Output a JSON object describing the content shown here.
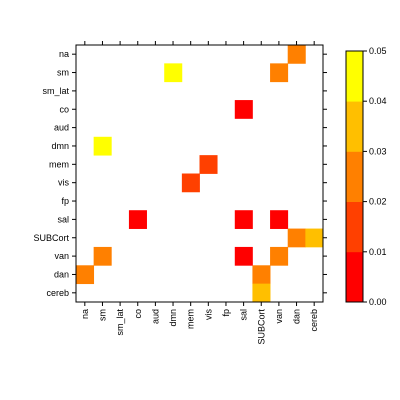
{
  "chart_data": {
    "type": "heatmap",
    "x_labels": [
      "na",
      "sm",
      "sm_lat",
      "co",
      "aud",
      "dmn",
      "mem",
      "vis",
      "fp",
      "sal",
      "SUBCort",
      "van",
      "dan",
      "cereb"
    ],
    "y_labels": [
      "na",
      "sm",
      "sm_lat",
      "co",
      "aud",
      "dmn",
      "mem",
      "vis",
      "fp",
      "sal",
      "SUBCort",
      "van",
      "dan",
      "cereb"
    ],
    "cells": [
      {
        "x": "dan",
        "y": "na",
        "value": 0.025
      },
      {
        "x": "dmn",
        "y": "sm",
        "value": 0.045
      },
      {
        "x": "van",
        "y": "sm",
        "value": 0.025
      },
      {
        "x": "sal",
        "y": "co",
        "value": 0.005
      },
      {
        "x": "sm",
        "y": "dmn",
        "value": 0.045
      },
      {
        "x": "vis",
        "y": "mem",
        "value": 0.015
      },
      {
        "x": "mem",
        "y": "vis",
        "value": 0.015
      },
      {
        "x": "co",
        "y": "sal",
        "value": 0.005
      },
      {
        "x": "sal",
        "y": "sal",
        "value": 0.005
      },
      {
        "x": "van",
        "y": "sal",
        "value": 0.005
      },
      {
        "x": "dan",
        "y": "SUBCort",
        "value": 0.025
      },
      {
        "x": "cereb",
        "y": "SUBCort",
        "value": 0.035
      },
      {
        "x": "sm",
        "y": "van",
        "value": 0.025
      },
      {
        "x": "sal",
        "y": "van",
        "value": 0.005
      },
      {
        "x": "van",
        "y": "van",
        "value": 0.025
      },
      {
        "x": "na",
        "y": "dan",
        "value": 0.025
      },
      {
        "x": "SUBCort",
        "y": "dan",
        "value": 0.025
      },
      {
        "x": "SUBCort",
        "y": "cereb",
        "value": 0.035
      }
    ],
    "colorbar": {
      "breaks": [
        0.0,
        0.01,
        0.02,
        0.03,
        0.04,
        0.05
      ],
      "tick_labels": [
        "0.00",
        "0.01",
        "0.02",
        "0.03",
        "0.04",
        "0.05"
      ],
      "colors": [
        "#FF0000",
        "#FF4000",
        "#FF8000",
        "#FFBF00",
        "#FFFF00"
      ]
    },
    "title": "",
    "xlabel": "",
    "ylabel": ""
  }
}
